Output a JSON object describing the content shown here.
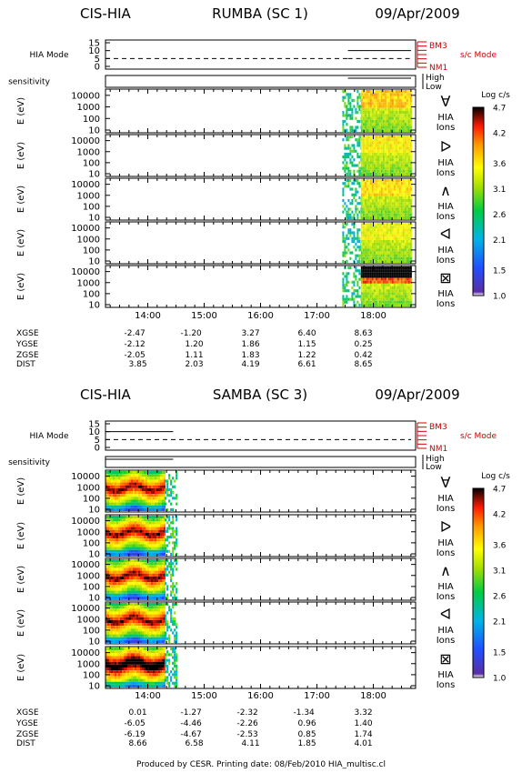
{
  "footer": {
    "text": "Produced by CESR.   Printing date: 08/Feb/2010   HIA_multisc.cl"
  },
  "colorbar": {
    "title": "Log c/s",
    "ticks": [
      "4.7",
      "4.2",
      "3.6",
      "3.1",
      "2.6",
      "2.1",
      "1.5",
      "1.0"
    ],
    "tick_values": [
      4.7,
      4.2,
      3.6,
      3.1,
      2.6,
      2.1,
      1.5,
      1.0
    ],
    "range": [
      1.0,
      4.7
    ]
  },
  "chart_data": [
    {
      "type": "heatmap",
      "header": {
        "left": "CIS-HIA",
        "center": "RUMBA (SC 1)",
        "right": "09/Apr/2009"
      },
      "time_range_hours": [
        13.25,
        18.75
      ],
      "time_ticks": [
        "14:00",
        "15:00",
        "16:00",
        "17:00",
        "18:00"
      ],
      "time_tick_values": [
        14,
        15,
        16,
        17,
        18
      ],
      "mode_panel": {
        "label": "HIA Mode",
        "yticks": [
          "15",
          "10",
          "5",
          "0"
        ],
        "ylim": [
          0,
          15
        ],
        "right_labels": [
          "BM3",
          "NM1"
        ],
        "sc_mode_label": "s/c Mode",
        "segments": [
          {
            "start": 13.25,
            "end": 17.55,
            "value": 5,
            "style": "dashed"
          },
          {
            "start": 17.55,
            "end": 18.67,
            "value": 10,
            "style": "solid"
          },
          {
            "start": 17.55,
            "end": 18.67,
            "value": 5,
            "style": "dashed"
          }
        ]
      },
      "sensitivity_panel": {
        "label": "sensitivity",
        "levels": [
          "High",
          "Low"
        ],
        "segments": [
          {
            "start": 17.55,
            "end": 18.67,
            "level": "High"
          }
        ]
      },
      "energy_axis": {
        "label": "E (eV)",
        "ticks": [
          "10000",
          "1000",
          "100",
          "10"
        ],
        "tick_values": [
          10000,
          1000,
          100,
          10
        ]
      },
      "spectrograms": [
        {
          "direction_symbol": "∀",
          "label": [
            "HIA",
            "Ions"
          ],
          "data_start": 17.45,
          "sparse_end": 17.78,
          "dense_end": 18.67,
          "peak_level": 4.3
        },
        {
          "direction_symbol": "ᐅ",
          "label": [
            "HIA",
            "Ions"
          ],
          "data_start": 17.45,
          "sparse_end": 17.78,
          "dense_end": 18.67,
          "peak_level": 4.1
        },
        {
          "direction_symbol": "∧",
          "label": [
            "HIA",
            "Ions"
          ],
          "data_start": 17.45,
          "sparse_end": 17.78,
          "dense_end": 18.67,
          "peak_level": 4.2
        },
        {
          "direction_symbol": "ᐊ",
          "label": [
            "HIA",
            "Ions"
          ],
          "data_start": 17.45,
          "sparse_end": 17.78,
          "dense_end": 18.67,
          "peak_level": 4.0
        },
        {
          "direction_symbol": "⊠",
          "label": [
            "HIA",
            "Ions"
          ],
          "data_start": 17.45,
          "sparse_end": 17.78,
          "dense_end": 18.67,
          "peak_level": 4.7
        }
      ],
      "ephemeris": {
        "rows": [
          {
            "name": "XGSE",
            "values": [
              "-2.47",
              "-1.20",
              "3.27",
              "6.40",
              "8.63"
            ]
          },
          {
            "name": "YGSE",
            "values": [
              "-2.12",
              "1.20",
              "1.86",
              "1.15",
              "0.25"
            ]
          },
          {
            "name": "ZGSE",
            "values": [
              "-2.05",
              "1.11",
              "1.83",
              "1.22",
              "0.42"
            ]
          },
          {
            "name": "DIST",
            "values": [
              "3.85",
              "2.03",
              "4.19",
              "6.61",
              "8.65"
            ]
          }
        ]
      }
    },
    {
      "type": "heatmap",
      "header": {
        "left": "CIS-HIA",
        "center": "SAMBA (SC 3)",
        "right": "09/Apr/2009"
      },
      "time_range_hours": [
        13.25,
        18.75
      ],
      "time_ticks": [
        "14:00",
        "15:00",
        "16:00",
        "17:00",
        "18:00"
      ],
      "time_tick_values": [
        14,
        15,
        16,
        17,
        18
      ],
      "mode_panel": {
        "label": "HIA Mode",
        "yticks": [
          "15",
          "10",
          "5",
          "0"
        ],
        "ylim": [
          0,
          15
        ],
        "right_labels": [
          "BM3",
          "NM1"
        ],
        "sc_mode_label": "s/c Mode",
        "segments": [
          {
            "start": 13.25,
            "end": 14.45,
            "value": 10,
            "style": "solid"
          },
          {
            "start": 13.25,
            "end": 18.67,
            "value": 5,
            "style": "dashed"
          }
        ]
      },
      "sensitivity_panel": {
        "label": "sensitivity",
        "levels": [
          "High",
          "Low"
        ],
        "segments": [
          {
            "start": 13.25,
            "end": 14.45,
            "level": "High"
          }
        ]
      },
      "energy_axis": {
        "label": "E (eV)",
        "ticks": [
          "10000",
          "1000",
          "100",
          "10"
        ],
        "tick_values": [
          10000,
          1000,
          100,
          10
        ]
      },
      "spectrograms": [
        {
          "direction_symbol": "∀",
          "label": [
            "HIA",
            "Ions"
          ],
          "dense_start": 13.25,
          "dense_end": 14.3,
          "sparse_end": 14.5,
          "peak_level": 4.7
        },
        {
          "direction_symbol": "ᐅ",
          "label": [
            "HIA",
            "Ions"
          ],
          "dense_start": 13.25,
          "dense_end": 14.3,
          "sparse_end": 14.5,
          "peak_level": 4.7
        },
        {
          "direction_symbol": "∧",
          "label": [
            "HIA",
            "Ions"
          ],
          "dense_start": 13.25,
          "dense_end": 14.3,
          "sparse_end": 14.5,
          "peak_level": 4.7
        },
        {
          "direction_symbol": "ᐊ",
          "label": [
            "HIA",
            "Ions"
          ],
          "dense_start": 13.25,
          "dense_end": 14.3,
          "sparse_end": 14.5,
          "peak_level": 4.7
        },
        {
          "direction_symbol": "⊠",
          "label": [
            "HIA",
            "Ions"
          ],
          "dense_start": 13.25,
          "dense_end": 14.3,
          "sparse_end": 14.5,
          "peak_level": 4.7
        }
      ],
      "ephemeris": {
        "rows": [
          {
            "name": "XGSE",
            "values": [
              "0.01",
              "-1.27",
              "-2.32",
              "-1.34",
              "3.32"
            ]
          },
          {
            "name": "YGSE",
            "values": [
              "-6.05",
              "-4.46",
              "-2.26",
              "0.96",
              "1.40"
            ]
          },
          {
            "name": "ZGSE",
            "values": [
              "-6.19",
              "-4.67",
              "-2.53",
              "0.85",
              "1.74"
            ]
          },
          {
            "name": "DIST",
            "values": [
              "8.66",
              "6.58",
              "4.11",
              "1.85",
              "4.01"
            ]
          }
        ]
      }
    }
  ]
}
